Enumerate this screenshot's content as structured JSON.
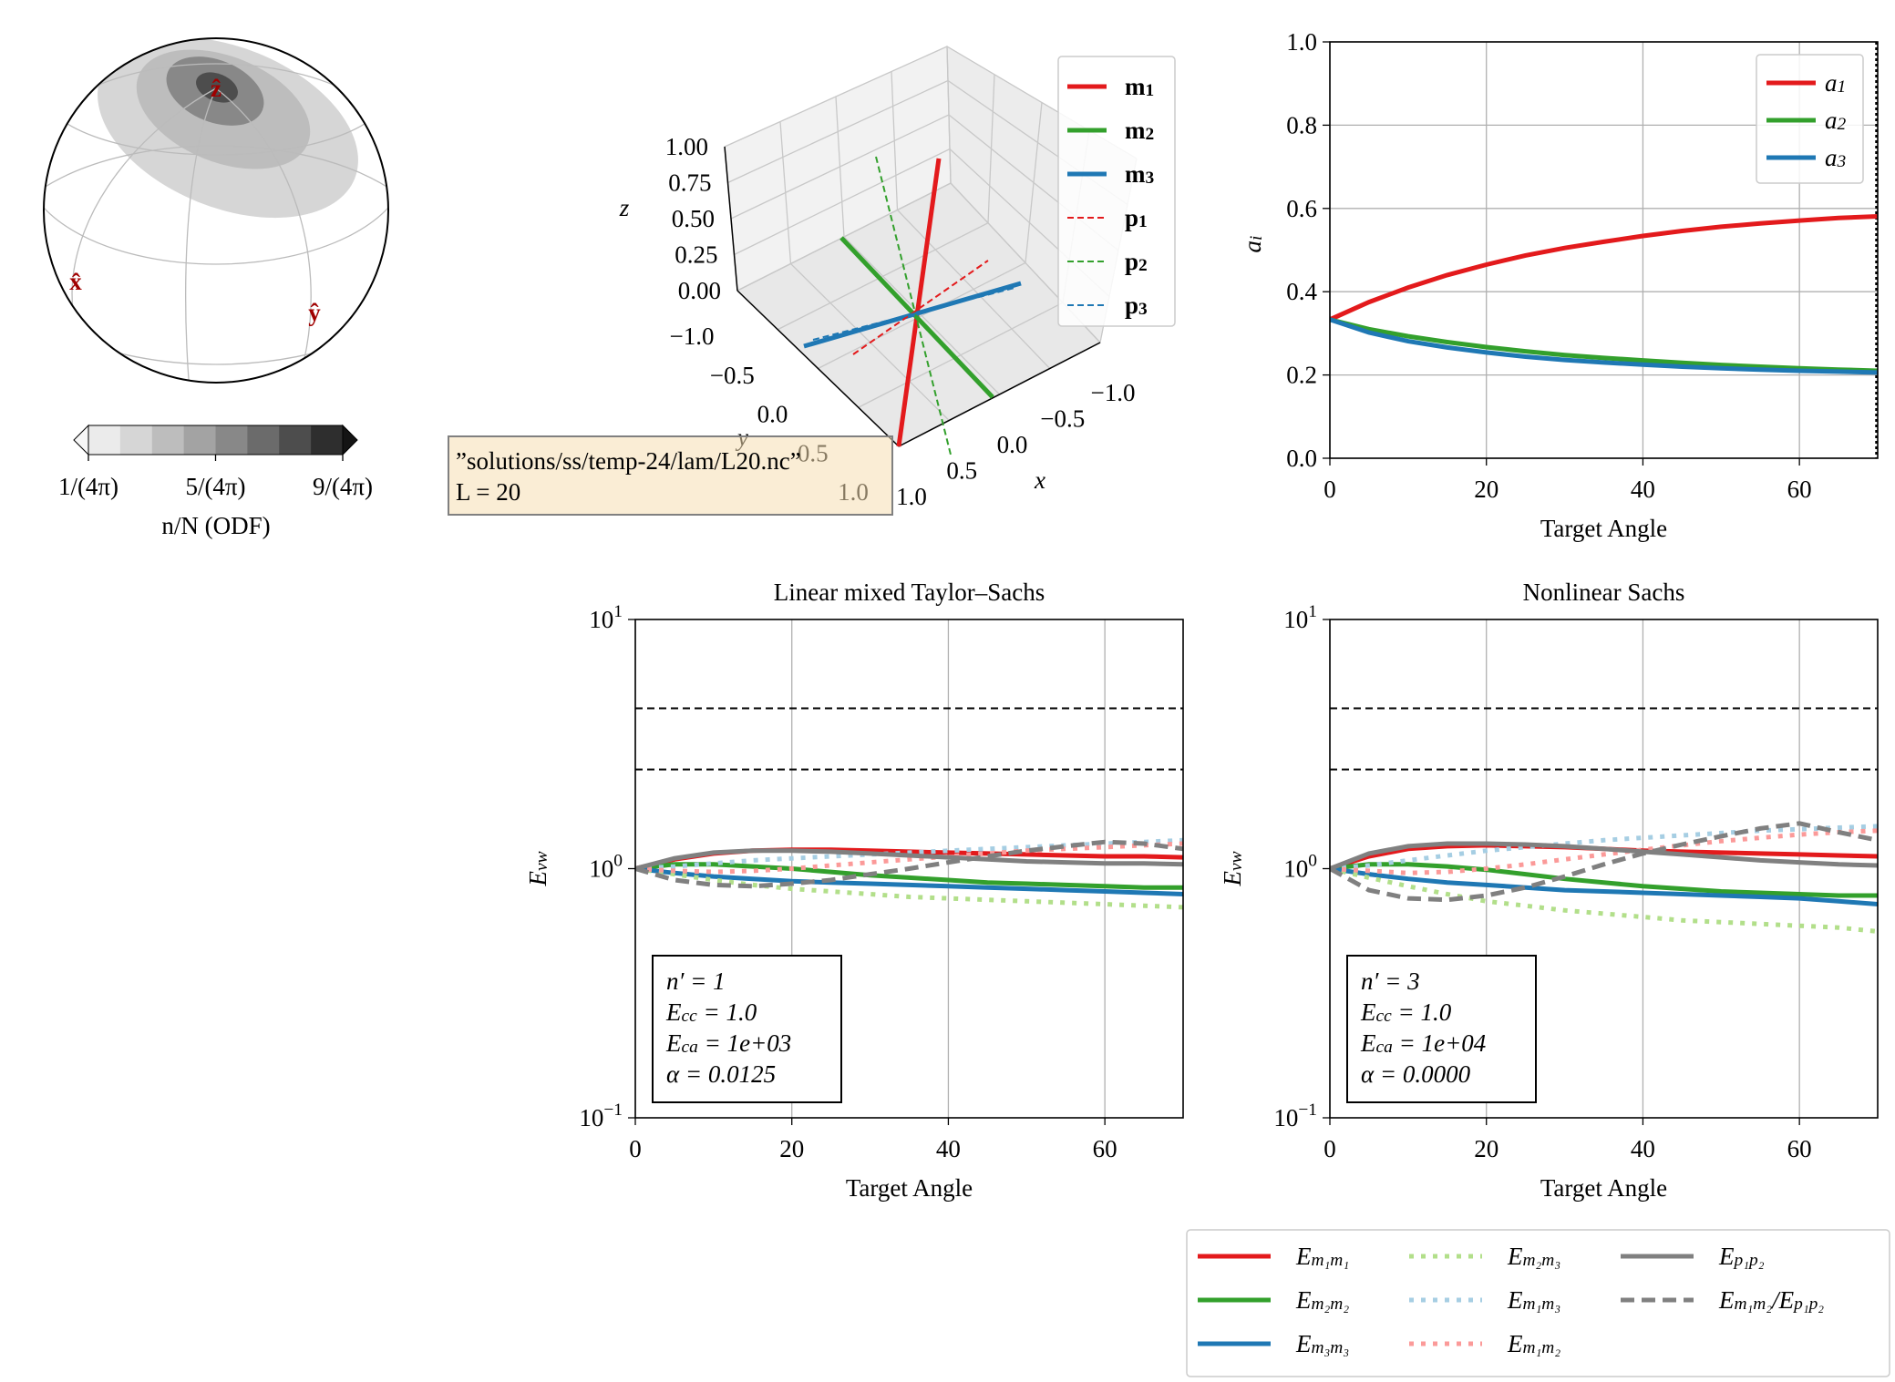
{
  "chart_data": [
    {
      "type": "sphere",
      "axis_labels": [
        "x̂",
        "ŷ",
        "ẑ"
      ],
      "colorbar": {
        "label": "n/N (ODF)",
        "lim": [
          1,
          9
        ],
        "ticks": [
          {
            "value": 1,
            "label": "1/(4π)"
          },
          {
            "value": 5,
            "label": "5/(4π)"
          },
          {
            "value": 9,
            "label": "9/(4π)"
          }
        ],
        "colors": [
          "#ebebeb",
          "#d6d6d6",
          "#bdbdbd",
          "#a3a3a3",
          "#888888",
          "#6b6b6b",
          "#4d4d4d",
          "#2e2e2e"
        ],
        "extend_colors": [
          "#f7f7f7",
          "#141414"
        ]
      }
    },
    {
      "type": "line3d",
      "series": [
        {
          "name": [
            "m",
            {
              "sub": "1"
            }
          ],
          "color": "#e31a1c",
          "dash": "solid"
        },
        {
          "name": [
            "m",
            {
              "sub": "2"
            }
          ],
          "color": "#33a02c",
          "dash": "solid"
        },
        {
          "name": [
            "m",
            {
              "sub": "3"
            }
          ],
          "color": "#1f78b4",
          "dash": "solid"
        },
        {
          "name": [
            "p",
            {
              "sub": "1"
            }
          ],
          "color": "#e31a1c",
          "dash": "dashed"
        },
        {
          "name": [
            "p",
            {
              "sub": "2"
            }
          ],
          "color": "#33a02c",
          "dash": "dashed"
        },
        {
          "name": [
            "p",
            {
              "sub": "3"
            }
          ],
          "color": "#1f78b4",
          "dash": "dashed"
        }
      ],
      "xlim": [
        -1,
        1
      ],
      "ylim": [
        -1,
        1
      ],
      "zlim": [
        0,
        1
      ],
      "xticks": [
        {
          "value": -1,
          "label": "−1.0"
        },
        {
          "value": -0.5,
          "label": "−0.5"
        },
        {
          "value": 0,
          "label": "0.0"
        },
        0.5,
        {
          "value": 1,
          "label": "1.0"
        }
      ],
      "yticks": [
        {
          "value": -1,
          "label": "−1.0"
        },
        {
          "value": -0.5,
          "label": "−0.5"
        },
        {
          "value": 0,
          "label": "0.0"
        },
        0.5,
        {
          "value": 1,
          "label": "1.0"
        }
      ],
      "zticks": [
        {
          "value": 0,
          "label": "0.00"
        },
        0.25,
        {
          "value": 0.5,
          "label": "0.50"
        },
        0.75,
        {
          "value": 1,
          "label": "1.00"
        }
      ],
      "xlabel": "x",
      "ylabel": "y",
      "zlabel": "z",
      "annotation": [
        "”solutions/ss/temp-24/lam/L20.nc”",
        "L = 20"
      ]
    },
    {
      "type": "line",
      "xlabel": "Target Angle",
      "ylabel": [
        "a",
        {
          "sub": "i"
        }
      ],
      "x": [
        0,
        5,
        10,
        15,
        20,
        25,
        30,
        35,
        40,
        45,
        50,
        55,
        60,
        65,
        70
      ],
      "series": [
        {
          "name": [
            "a",
            {
              "sub": "1"
            }
          ],
          "color": "#e31a1c",
          "dash": "solid",
          "values": [
            0.333,
            0.375,
            0.41,
            0.44,
            0.465,
            0.487,
            0.505,
            0.52,
            0.534,
            0.546,
            0.556,
            0.564,
            0.571,
            0.577,
            0.581
          ]
        },
        {
          "name": [
            "a",
            {
              "sub": "2"
            }
          ],
          "color": "#33a02c",
          "dash": "solid",
          "values": [
            0.333,
            0.31,
            0.293,
            0.279,
            0.267,
            0.257,
            0.248,
            0.241,
            0.235,
            0.229,
            0.224,
            0.22,
            0.216,
            0.213,
            0.21
          ]
        },
        {
          "name": [
            "a",
            {
              "sub": "3"
            }
          ],
          "color": "#1f78b4",
          "dash": "solid",
          "values": [
            0.333,
            0.302,
            0.281,
            0.266,
            0.254,
            0.244,
            0.236,
            0.23,
            0.225,
            0.22,
            0.216,
            0.213,
            0.21,
            0.208,
            0.206
          ]
        }
      ],
      "xlim": [
        0,
        70
      ],
      "ylim": [
        0,
        1
      ],
      "xticks": [
        0,
        20,
        40,
        60
      ],
      "yticks": [
        {
          "value": 0,
          "label": "0.0"
        },
        0.2,
        0.4,
        0.6,
        0.8,
        {
          "value": 1,
          "label": "1.0"
        }
      ],
      "vlines": [
        70
      ],
      "grid": "both",
      "legend": "upper right"
    },
    {
      "type": "line",
      "title": "Linear mixed Taylor–Sachs",
      "xlabel": "Target Angle",
      "ylabel": [
        "E",
        {
          "sub": "vw"
        }
      ],
      "x": [
        0,
        5,
        10,
        15,
        20,
        25,
        30,
        35,
        40,
        45,
        50,
        55,
        60,
        65,
        70
      ],
      "series": [
        {
          "name": [
            "E",
            {
              "sub": "m₁m₁"
            }
          ],
          "color": "#e31a1c",
          "dash": "solid",
          "values": [
            1,
            1.09,
            1.15,
            1.18,
            1.19,
            1.19,
            1.18,
            1.17,
            1.16,
            1.15,
            1.14,
            1.13,
            1.12,
            1.12,
            1.11
          ]
        },
        {
          "name": [
            "E",
            {
              "sub": "m₂m₂"
            }
          ],
          "color": "#33a02c",
          "dash": "solid",
          "values": [
            1,
            1.04,
            1.04,
            1.02,
            1.0,
            0.97,
            0.94,
            0.92,
            0.9,
            0.88,
            0.87,
            0.86,
            0.85,
            0.84,
            0.84
          ]
        },
        {
          "name": [
            "E",
            {
              "sub": "m₃m₃"
            }
          ],
          "color": "#1f78b4",
          "dash": "solid",
          "values": [
            1,
            0.96,
            0.93,
            0.91,
            0.89,
            0.88,
            0.87,
            0.86,
            0.85,
            0.84,
            0.83,
            0.82,
            0.81,
            0.8,
            0.79
          ]
        },
        {
          "name": [
            "E",
            {
              "sub": "m₂m₃"
            }
          ],
          "color": "#b2df8a",
          "dash": "dotted",
          "values": [
            1,
            0.95,
            0.9,
            0.86,
            0.83,
            0.81,
            0.79,
            0.77,
            0.76,
            0.75,
            0.74,
            0.73,
            0.72,
            0.71,
            0.7
          ]
        },
        {
          "name": [
            "E",
            {
              "sub": "m₁m₃"
            }
          ],
          "color": "#a6cee3",
          "dash": "dotted",
          "values": [
            1,
            1.02,
            1.05,
            1.08,
            1.1,
            1.12,
            1.14,
            1.16,
            1.18,
            1.2,
            1.22,
            1.24,
            1.26,
            1.28,
            1.3
          ]
        },
        {
          "name": [
            "E",
            {
              "sub": "m₁m₂"
            }
          ],
          "color": "#fb9a99",
          "dash": "dotted",
          "values": [
            1,
            0.98,
            0.97,
            0.98,
            1.0,
            1.03,
            1.06,
            1.09,
            1.12,
            1.15,
            1.18,
            1.2,
            1.22,
            1.24,
            1.26
          ]
        },
        {
          "name": [
            "E",
            {
              "sub": "p₁p₂"
            }
          ],
          "color": "#808080",
          "dash": "solid",
          "values": [
            1,
            1.1,
            1.16,
            1.18,
            1.18,
            1.17,
            1.15,
            1.13,
            1.11,
            1.09,
            1.07,
            1.06,
            1.05,
            1.05,
            1.04
          ]
        },
        {
          "name": [
            "E",
            {
              "sub": "m₁m₂"
            },
            "/E",
            {
              "sub": "p₁p₂"
            }
          ],
          "color": "#808080",
          "dash": "dashed",
          "values": [
            1,
            0.9,
            0.86,
            0.85,
            0.87,
            0.9,
            0.95,
            1.0,
            1.06,
            1.12,
            1.18,
            1.23,
            1.28,
            1.26,
            1.2
          ]
        }
      ],
      "xlim": [
        0,
        70
      ],
      "ylim": [
        0.1,
        10
      ],
      "log_y": true,
      "xticks": [
        0,
        20,
        40,
        60
      ],
      "yticks": [
        {
          "value": 0.1,
          "label": [
            "10",
            {
              "sup": "−1"
            }
          ]
        },
        {
          "value": 1,
          "label": [
            "10",
            {
              "sup": "0"
            }
          ]
        },
        {
          "value": 10,
          "label": [
            "10",
            {
              "sup": "1"
            }
          ]
        }
      ],
      "hlines": [
        4.4,
        2.5
      ],
      "grid": "x",
      "legend": "figure lower right",
      "textbox": [
        "n′ = 1",
        [
          "E",
          {
            "sub": "cc"
          },
          " = 1.0"
        ],
        [
          "E",
          {
            "sub": "ca"
          },
          " = 1e+03"
        ],
        "α = 0.0125"
      ]
    },
    {
      "type": "line",
      "title": "Nonlinear Sachs",
      "xlabel": "Target Angle",
      "ylabel": [
        "E",
        {
          "sub": "vw"
        }
      ],
      "x": [
        0,
        5,
        10,
        15,
        20,
        25,
        30,
        35,
        40,
        45,
        50,
        55,
        60,
        65,
        70
      ],
      "series": [
        {
          "color": "#e31a1c",
          "dash": "solid",
          "values": [
            1,
            1.12,
            1.2,
            1.23,
            1.24,
            1.23,
            1.22,
            1.2,
            1.18,
            1.17,
            1.16,
            1.15,
            1.14,
            1.13,
            1.12
          ]
        },
        {
          "color": "#33a02c",
          "dash": "solid",
          "values": [
            1,
            1.04,
            1.04,
            1.02,
            0.99,
            0.95,
            0.91,
            0.88,
            0.85,
            0.83,
            0.81,
            0.8,
            0.79,
            0.78,
            0.78
          ]
        },
        {
          "color": "#1f78b4",
          "dash": "solid",
          "values": [
            1,
            0.95,
            0.91,
            0.88,
            0.86,
            0.84,
            0.82,
            0.81,
            0.8,
            0.79,
            0.78,
            0.77,
            0.76,
            0.74,
            0.72
          ]
        },
        {
          "color": "#b2df8a",
          "dash": "dotted",
          "values": [
            1,
            0.92,
            0.85,
            0.79,
            0.74,
            0.71,
            0.68,
            0.66,
            0.64,
            0.62,
            0.61,
            0.6,
            0.59,
            0.58,
            0.56
          ]
        },
        {
          "color": "#a6cee3",
          "dash": "dotted",
          "values": [
            1,
            1.03,
            1.08,
            1.13,
            1.18,
            1.22,
            1.26,
            1.3,
            1.33,
            1.36,
            1.39,
            1.42,
            1.44,
            1.46,
            1.48
          ]
        },
        {
          "color": "#fb9a99",
          "dash": "dotted",
          "values": [
            1,
            0.98,
            0.96,
            0.97,
            1.0,
            1.04,
            1.09,
            1.14,
            1.19,
            1.24,
            1.29,
            1.33,
            1.37,
            1.4,
            1.42
          ]
        },
        {
          "color": "#808080",
          "dash": "solid",
          "values": [
            1,
            1.15,
            1.23,
            1.26,
            1.26,
            1.25,
            1.23,
            1.2,
            1.17,
            1.14,
            1.11,
            1.08,
            1.06,
            1.04,
            1.03
          ]
        },
        {
          "color": "#808080",
          "dash": "dashed",
          "values": [
            1,
            0.82,
            0.76,
            0.75,
            0.78,
            0.84,
            0.93,
            1.04,
            1.15,
            1.25,
            1.35,
            1.45,
            1.52,
            1.4,
            1.3
          ]
        }
      ],
      "xlim": [
        0,
        70
      ],
      "ylim": [
        0.1,
        10
      ],
      "log_y": true,
      "xticks": [
        0,
        20,
        40,
        60
      ],
      "yticks": [
        {
          "value": 0.1,
          "label": [
            "10",
            {
              "sup": "−1"
            }
          ]
        },
        {
          "value": 1,
          "label": [
            "10",
            {
              "sup": "0"
            }
          ]
        },
        {
          "value": 10,
          "label": [
            "10",
            {
              "sup": "1"
            }
          ]
        }
      ],
      "hlines": [
        4.4,
        2.5
      ],
      "grid": "x",
      "textbox": [
        "n′ = 3",
        [
          "E",
          {
            "sub": "cc"
          },
          " = 1.0"
        ],
        [
          "E",
          {
            "sub": "ca"
          },
          " = 1e+04"
        ],
        "α = 0.0000"
      ]
    }
  ]
}
